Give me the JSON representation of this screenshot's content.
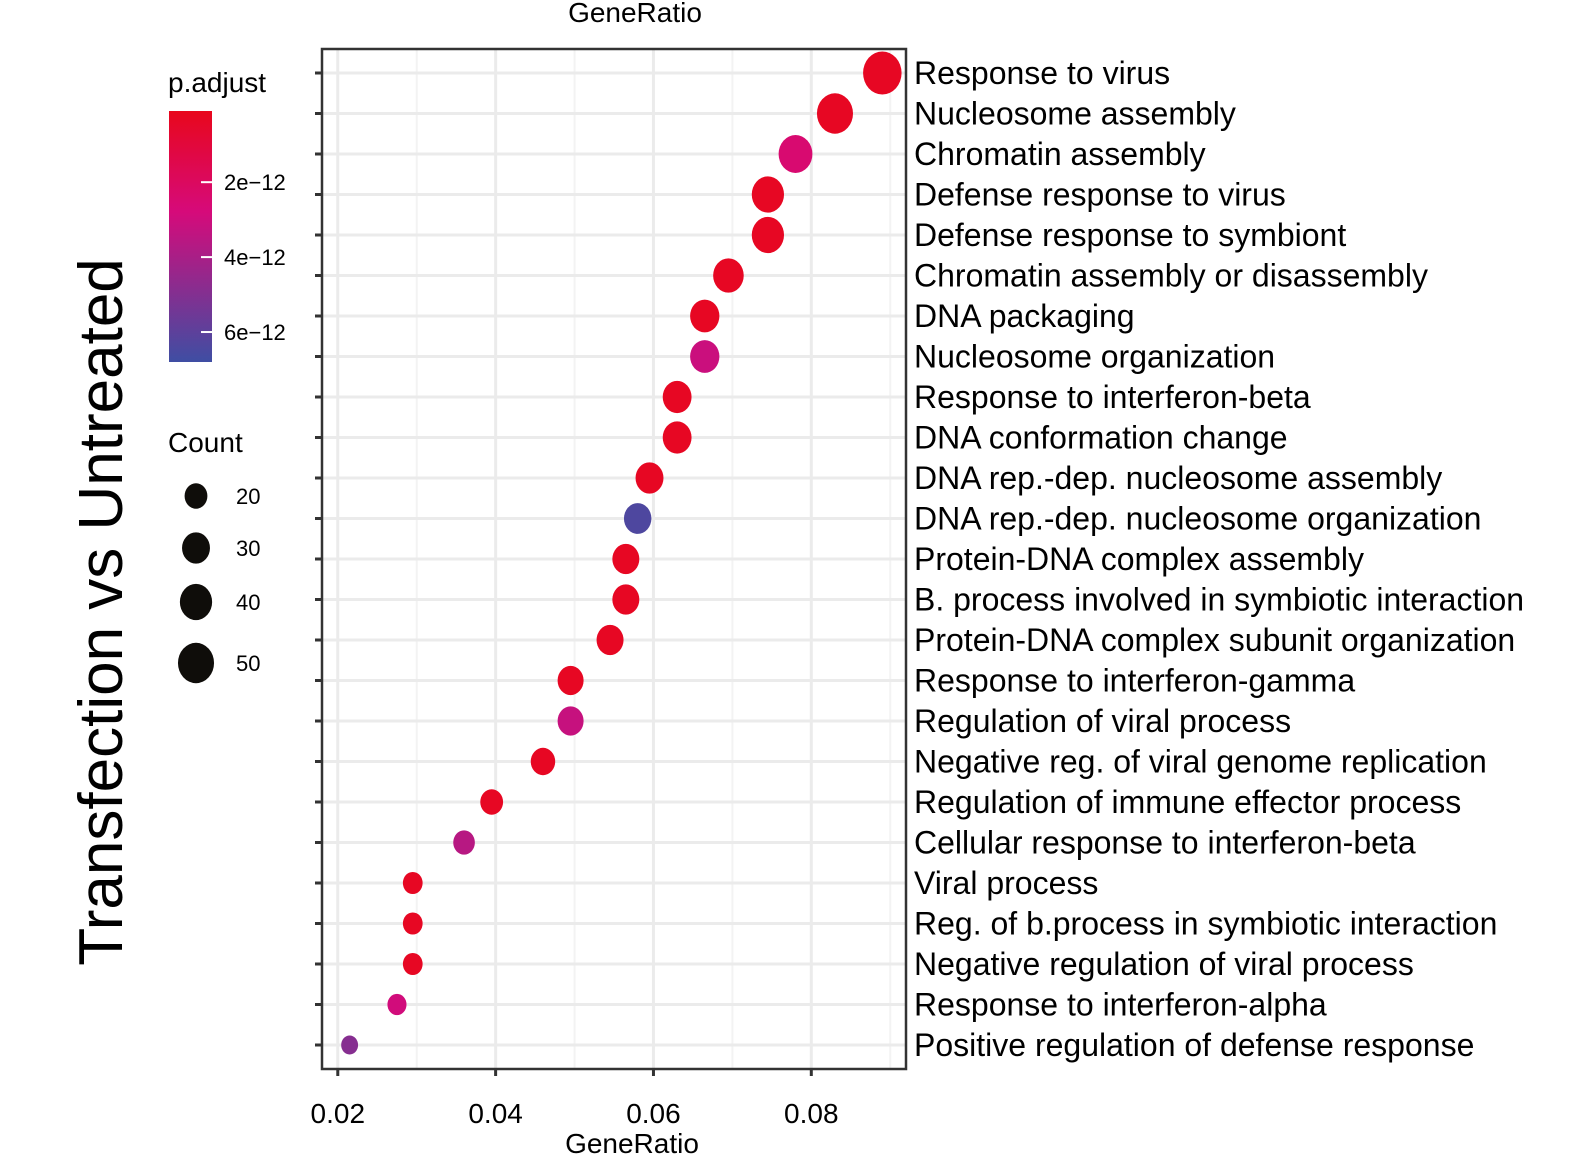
{
  "chart_data": {
    "type": "scatter",
    "subtype": "dot-plot",
    "title": "Transfection vs Untreated",
    "xlabel": "GeneRatio",
    "xlabel_top": "GeneRatio",
    "ylabel": "",
    "xlim": [
      0.018,
      0.092
    ],
    "xticks": [
      0.02,
      0.04,
      0.06,
      0.08
    ],
    "xtick_labels": [
      "0.02",
      "0.04",
      "0.06",
      "0.08"
    ],
    "grid": true,
    "categories": [
      "Response to virus",
      "Nucleosome assembly",
      "Chromatin assembly",
      "Defense response to virus",
      "Defense response to symbiont",
      "Chromatin assembly or disassembly",
      "DNA packaging",
      "Nucleosome organization",
      "Response to interferon-beta",
      "DNA conformation change",
      "DNA rep.-dep. nucleosome assembly",
      "DNA rep.-dep. nucleosome organization",
      "Protein-DNA complex assembly",
      "B. process involved in symbiotic interaction",
      "Protein-DNA complex subunit organization",
      "Response to interferon-gamma",
      "Regulation of viral process",
      "Negative reg. of viral genome replication",
      "Regulation of immune effector process",
      "Cellular response to interferon-beta",
      "Viral process",
      "Reg. of b.process in symbiotic interaction",
      "Negative regulation of viral process",
      "Response to interferon-alpha",
      "Positive regulation of defense response"
    ],
    "gene_ratio": [
      0.089,
      0.083,
      0.078,
      0.0745,
      0.0745,
      0.0695,
      0.0665,
      0.0665,
      0.063,
      0.063,
      0.0595,
      0.058,
      0.0565,
      0.0565,
      0.0545,
      0.0495,
      0.0495,
      0.046,
      0.0395,
      0.036,
      0.0295,
      0.0295,
      0.0295,
      0.0275,
      0.0215
    ],
    "count": [
      57,
      50,
      44,
      40,
      40,
      36,
      33,
      33,
      32,
      32,
      30,
      29,
      28,
      28,
      28,
      26,
      26,
      23,
      20,
      18,
      15,
      15,
      15,
      14,
      11
    ],
    "p_adjust": [
      3e-13,
      3e-13,
      2.5e-12,
      3e-13,
      3e-13,
      3e-13,
      3e-13,
      3.1e-12,
      3e-13,
      3e-13,
      3e-13,
      6.4e-12,
      3e-13,
      3e-13,
      3e-13,
      3e-13,
      3.2e-12,
      3e-13,
      3e-13,
      3.6e-12,
      3e-13,
      3e-13,
      3e-13,
      2.9e-12,
      4.9e-12
    ],
    "color_legend": {
      "title": "p.adjust",
      "ticks": [
        2e-12,
        4e-12,
        6e-12
      ],
      "tick_labels": [
        "2e−12",
        "4e−12",
        "6e−12"
      ],
      "range": [
        1e-13,
        6.8e-12
      ],
      "color_low": "#e8071c",
      "color_mid": "#d60a7a",
      "color_high": "#3f4ea3"
    },
    "size_legend": {
      "title": "Count",
      "values": [
        20,
        30,
        40,
        50
      ],
      "labels": [
        "20",
        "30",
        "40",
        "50"
      ]
    }
  }
}
